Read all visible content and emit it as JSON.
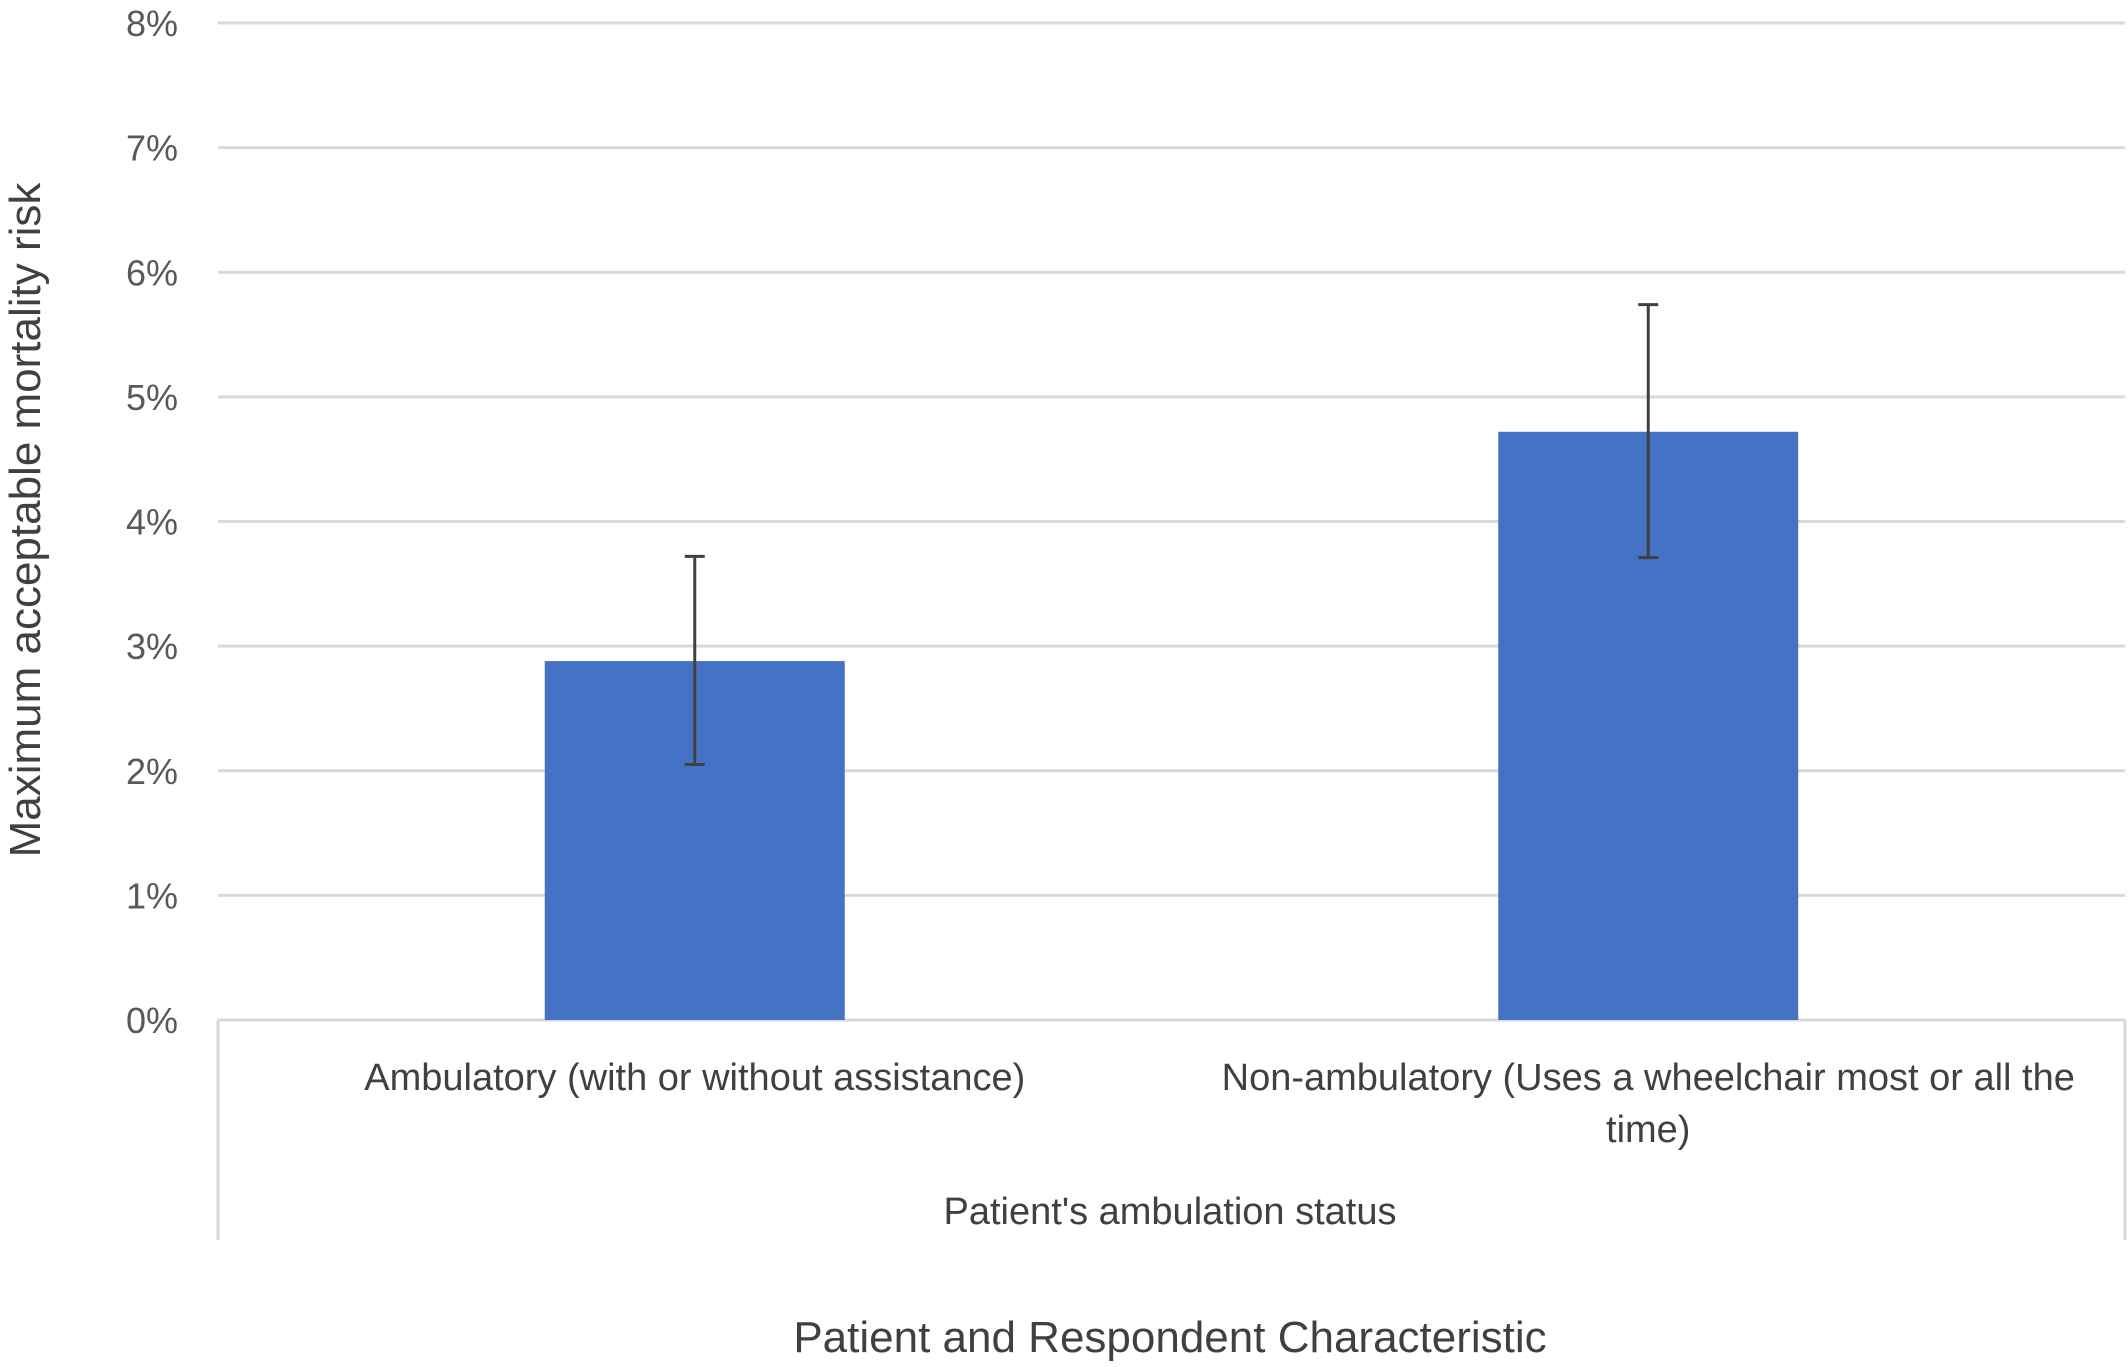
{
  "chart_data": {
    "type": "bar",
    "title": "",
    "ylabel": "Maximum acceptable mortality risk",
    "xlabel": "Patient and Respondent Characteristic",
    "group_label": "Patient's ambulation status",
    "ylim": [
      0,
      8
    ],
    "y_ticks": [
      "0%",
      "1%",
      "2%",
      "3%",
      "4%",
      "5%",
      "6%",
      "7%",
      "8%"
    ],
    "grid": true,
    "categories": [
      [
        "Ambulatory (with or without assistance)"
      ],
      [
        "Non-ambulatory (Uses a wheelchair most or all the",
        "time)"
      ]
    ],
    "values": [
      2.88,
      4.72
    ],
    "error_low": [
      2.05,
      3.71
    ],
    "error_high": [
      3.72,
      5.74
    ],
    "unit": "%",
    "colors": {
      "bar": "#4472C4",
      "grid": "#D9D9D9",
      "error": "#404040"
    }
  }
}
